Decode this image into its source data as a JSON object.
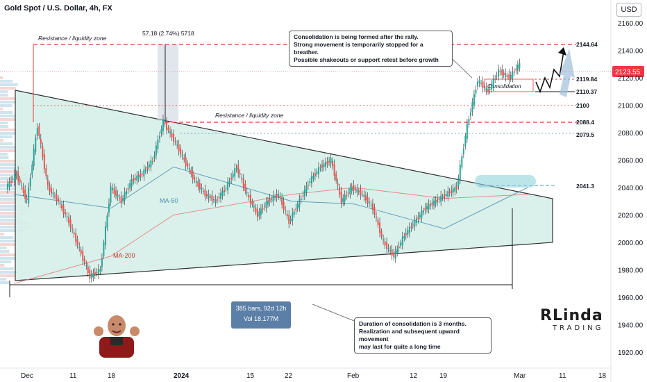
{
  "header": {
    "title": "Gold Spot / U.S. Dollar, 4h, FX",
    "currency_button": "USD"
  },
  "price_axis": {
    "ticks": [
      "2160.00",
      "2140.00",
      "2120.00",
      "2100.00",
      "2080.00",
      "2060.00",
      "2040.00",
      "2020.00",
      "2000.00",
      "1980.00",
      "1960.00",
      "1940.00",
      "1920.00"
    ],
    "current_price": "2123.55",
    "current_price_color": "#f23645"
  },
  "time_axis": {
    "labels": [
      "Dec",
      "11",
      "18",
      "2024",
      "15",
      "22",
      "Feb",
      "12",
      "19",
      "Mar",
      "11",
      "18"
    ]
  },
  "annotations": {
    "resistance_top_label": "Resistance / liquidity zone",
    "resistance_mid_label": "Resistance / liquidity zone",
    "measure_label": "57.18 (2.74%) 5718",
    "consolidation_label": "Consolidation",
    "ma50_label": "MA-50",
    "ma200_label": "MA-200",
    "note_top": "Consolidation is being formed after the rally.\nStrong movement is temporarily stopped for a breather.\nPossible shakeouts or support retest before growth",
    "note_bottom": "Duration of consolidation is 3 months.\nRealization and subsequent upward movement\nmay last for quite a long time",
    "range_bars": "385 bars, 92d 12h",
    "range_vol": "Vol 18.177M"
  },
  "levels": [
    {
      "value": 2144.64,
      "label": "2144.64",
      "style": "red-dashed"
    },
    {
      "value": 2119.84,
      "label": "2119.84",
      "style": "red-dotted"
    },
    {
      "value": 2110.37,
      "label": "2110.37",
      "style": "black"
    },
    {
      "value": 2100,
      "label": "2100",
      "style": "red-dotted"
    },
    {
      "value": 2088.4,
      "label": "2088.4",
      "style": "red-dashed"
    },
    {
      "value": 2079.5,
      "label": "2079.5",
      "style": "blue-dotted"
    },
    {
      "value": 2041.3,
      "label": "2041.3",
      "style": "blue-dashed"
    }
  ],
  "logo": {
    "top": "RLinda",
    "bottom": "TRADING"
  },
  "colors": {
    "up": "#26a69a",
    "down": "#ef5350",
    "triangle_fill": "#d7efe9",
    "ma50": "#4d8fb0",
    "ma200": "#e37b7b",
    "resistance": "#e53935"
  },
  "chart_data": {
    "type": "line",
    "title": "Gold Spot / U.S. Dollar, 4h, FX",
    "ylim": [
      1910,
      2170
    ],
    "series": [
      {
        "name": "MA-50",
        "x": [
          "Dec",
          "18",
          "2024",
          "22",
          "Feb",
          "19",
          "Mar"
        ],
        "values": [
          2035,
          2025,
          2055,
          2030,
          2028,
          2010,
          2040
        ]
      },
      {
        "name": "MA-200",
        "x": [
          "Dec",
          "18",
          "2024",
          "22",
          "Feb",
          "19",
          "Mar"
        ],
        "values": [
          1970,
          1990,
          2020,
          2035,
          2040,
          2032,
          2035
        ]
      }
    ],
    "price_path": [
      2040,
      2050,
      2030,
      2085,
      2040,
      2030,
      2015,
      1995,
      1975,
      1980,
      2040,
      2030,
      2045,
      2050,
      2060,
      2088,
      2075,
      2060,
      2045,
      2035,
      2030,
      2040,
      2055,
      2035,
      2020,
      2030,
      2035,
      2015,
      2030,
      2045,
      2055,
      2060,
      2030,
      2040,
      2035,
      2025,
      2000,
      1990,
      2005,
      2015,
      2025,
      2030,
      2035,
      2040,
      2085,
      2118,
      2110,
      2125,
      2120,
      2130
    ]
  }
}
